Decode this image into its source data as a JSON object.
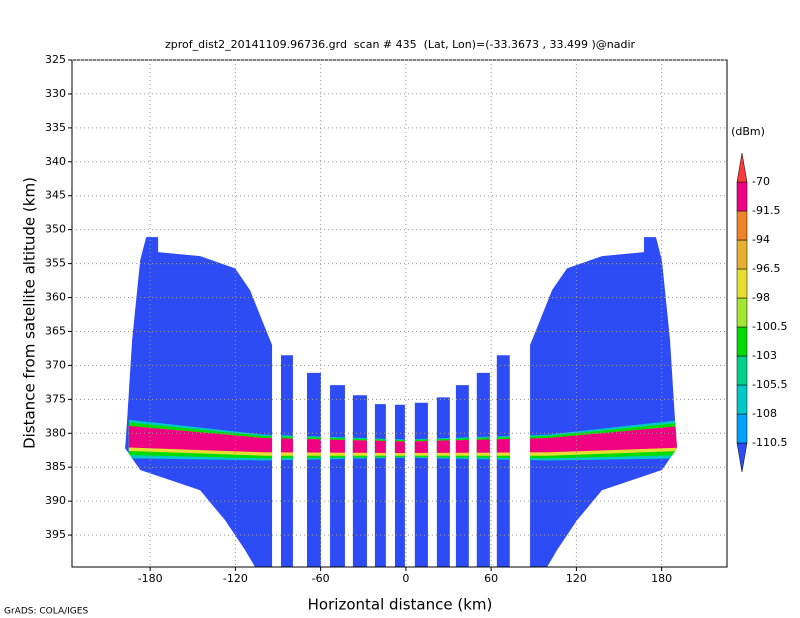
{
  "chart_data": {
    "type": "section",
    "title": "zprof_dist2_20141109.96736.grd  scan # 435  (Lat, Lon)=(-33.3673 , 33.499 )@nadir",
    "xlabel": "Horizontal distance (km)",
    "ylabel": "Distance from satellite altitude (km)",
    "credit": "GrADS: COLA/IGES",
    "colorbar_title": "(dBm)",
    "xlim": [
      -235,
      226
    ],
    "ylim": [
      325,
      399.7
    ],
    "y_reversed": true,
    "grid": true,
    "xticks": [
      -180,
      -120,
      -60,
      0,
      60,
      120,
      180
    ],
    "yticks": [
      325,
      330,
      335,
      340,
      345,
      350,
      355,
      360,
      365,
      370,
      375,
      380,
      385,
      390,
      395
    ],
    "levels": [
      -110.5,
      -108,
      -105.5,
      -103,
      -100.5,
      -98,
      -96.5,
      -94,
      -91.5,
      -70
    ],
    "colors": [
      "#2d4cf5",
      "#00a0ff",
      "#00c8c8",
      "#00d28c",
      "#00dc00",
      "#a0e632",
      "#e6dc32",
      "#e6af2d",
      "#f08228",
      "#f00082",
      "#fa3c3c"
    ],
    "regions": [
      {
        "value": -115,
        "points": [
          [
            -182.8,
            351.1
          ],
          [
            -174.4,
            351.1
          ],
          [
            -174.4,
            353.3
          ],
          [
            -144.8,
            353.9
          ],
          [
            -120.2,
            355.7
          ],
          [
            -109.7,
            358.9
          ],
          [
            -101.3,
            363.3
          ],
          [
            -94.2,
            367.0
          ],
          [
            -94.2,
            399.7
          ],
          [
            -106.2,
            399.7
          ],
          [
            -113.2,
            397.2
          ],
          [
            -127.3,
            392.8
          ],
          [
            -144.8,
            388.4
          ],
          [
            -187.0,
            385.4
          ],
          [
            -197.6,
            382.2
          ],
          [
            -196.2,
            378.0
          ],
          [
            -192.7,
            366.3
          ],
          [
            -187.0,
            354.5
          ]
        ]
      },
      {
        "value": -115,
        "points": [
          [
            176.0,
            351.1
          ],
          [
            167.6,
            351.1
          ],
          [
            167.6,
            353.3
          ],
          [
            138.0,
            353.9
          ],
          [
            113.4,
            355.7
          ],
          [
            102.9,
            358.9
          ],
          [
            94.5,
            363.3
          ],
          [
            87.4,
            367.0
          ],
          [
            87.4,
            399.7
          ],
          [
            99.4,
            399.7
          ],
          [
            106.4,
            397.2
          ],
          [
            120.5,
            392.8
          ],
          [
            138.0,
            388.4
          ],
          [
            180.2,
            385.4
          ],
          [
            190.8,
            382.2
          ],
          [
            189.4,
            378.0
          ],
          [
            185.9,
            366.3
          ],
          [
            180.2,
            354.5
          ]
        ]
      },
      {
        "value": -115,
        "points": [
          [
            -87.9,
            368.5
          ],
          [
            -79.5,
            368.5
          ],
          [
            -79.5,
            399.7
          ],
          [
            -87.9,
            399.7
          ]
        ]
      },
      {
        "value": -115,
        "points": [
          [
            -69.6,
            371.1
          ],
          [
            -59.8,
            371.1
          ],
          [
            -59.8,
            399.7
          ],
          [
            -69.6,
            399.7
          ]
        ]
      },
      {
        "value": -115,
        "points": [
          [
            -53.4,
            372.9
          ],
          [
            -42.9,
            372.9
          ],
          [
            -42.9,
            399.7
          ],
          [
            -53.4,
            399.7
          ]
        ]
      },
      {
        "value": -115,
        "points": [
          [
            -37.3,
            374.4
          ],
          [
            -27.4,
            374.4
          ],
          [
            -27.4,
            399.7
          ],
          [
            -37.3,
            399.7
          ]
        ]
      },
      {
        "value": -115,
        "points": [
          [
            -21.8,
            375.7
          ],
          [
            -14.1,
            375.7
          ],
          [
            -14.1,
            399.7
          ],
          [
            -21.8,
            399.7
          ]
        ]
      },
      {
        "value": -115,
        "points": [
          [
            -7.7,
            375.8
          ],
          [
            -0.7,
            375.8
          ],
          [
            -0.7,
            399.7
          ],
          [
            -7.7,
            399.7
          ]
        ]
      },
      {
        "value": -115,
        "points": [
          [
            6.3,
            375.5
          ],
          [
            15.5,
            375.5
          ],
          [
            15.5,
            399.7
          ],
          [
            6.3,
            399.7
          ]
        ]
      },
      {
        "value": -115,
        "points": [
          [
            21.8,
            374.7
          ],
          [
            30.9,
            374.7
          ],
          [
            30.9,
            399.7
          ],
          [
            21.8,
            399.7
          ]
        ]
      },
      {
        "value": -115,
        "points": [
          [
            35.2,
            372.9
          ],
          [
            44.3,
            372.9
          ],
          [
            44.3,
            399.7
          ],
          [
            35.2,
            399.7
          ]
        ]
      },
      {
        "value": -115,
        "points": [
          [
            49.9,
            371.1
          ],
          [
            59.1,
            371.1
          ],
          [
            59.1,
            399.7
          ],
          [
            49.9,
            399.7
          ]
        ]
      },
      {
        "value": -115,
        "points": [
          [
            64.0,
            368.5
          ],
          [
            73.1,
            368.5
          ],
          [
            73.1,
            399.7
          ],
          [
            64.0,
            399.7
          ]
        ]
      }
    ],
    "bands": [
      {
        "value": -107,
        "points": [
          [
            -195,
            378.0
          ],
          [
            -100,
            380.2
          ],
          [
            0,
            380.9
          ],
          [
            100,
            380.2
          ],
          [
            195,
            378.0
          ],
          [
            195,
            383.7
          ],
          [
            100,
            384.0
          ],
          [
            0,
            383.6
          ],
          [
            -100,
            384.0
          ],
          [
            -195,
            383.7
          ]
        ]
      },
      {
        "value": -102,
        "points": [
          [
            -195,
            378.4
          ],
          [
            -100,
            380.4
          ],
          [
            0,
            381.0
          ],
          [
            100,
            380.4
          ],
          [
            195,
            378.4
          ],
          [
            195,
            383.2
          ],
          [
            100,
            383.7
          ],
          [
            0,
            383.5
          ],
          [
            -100,
            383.7
          ],
          [
            -195,
            383.2
          ]
        ]
      },
      {
        "value": -97,
        "points": [
          [
            -195,
            378.9
          ],
          [
            -100,
            380.7
          ],
          [
            0,
            381.2
          ],
          [
            100,
            380.7
          ],
          [
            195,
            378.9
          ],
          [
            195,
            382.6
          ],
          [
            100,
            383.3
          ],
          [
            0,
            383.3
          ],
          [
            -100,
            383.3
          ],
          [
            -195,
            382.6
          ]
        ]
      },
      {
        "value": -80,
        "points": [
          [
            -195,
            378.9
          ],
          [
            -100,
            380.7
          ],
          [
            0,
            381.2
          ],
          [
            100,
            380.7
          ],
          [
            195,
            378.9
          ],
          [
            195,
            382.1
          ],
          [
            100,
            382.8
          ],
          [
            0,
            382.9
          ],
          [
            -100,
            382.8
          ],
          [
            -195,
            382.1
          ]
        ]
      }
    ]
  }
}
